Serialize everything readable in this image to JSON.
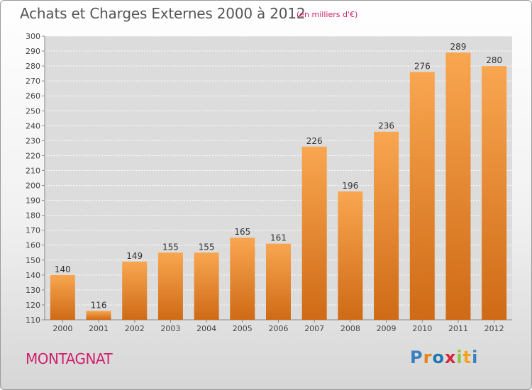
{
  "header": {
    "title": "Achats et Charges Externes 2000 à 2012",
    "subtitle": "(en milliers d'€)"
  },
  "footer": {
    "commune": "MONTAGNAT",
    "brand": [
      "P",
      "r",
      "o",
      "x",
      "i",
      "t",
      "i"
    ]
  },
  "colors": {
    "bar_light": "#f9a650",
    "bar_dark": "#cf6a16",
    "accent_text": "#d0206e",
    "brand": [
      "#3a7fc1",
      "#e8821e",
      "#1f78b4",
      "#d7263d",
      "#8cc63f",
      "#f4a11b",
      "#3a7fc1"
    ]
  },
  "chart_data": {
    "type": "bar",
    "categories": [
      "2000",
      "2001",
      "2002",
      "2003",
      "2004",
      "2005",
      "2006",
      "2007",
      "2008",
      "2009",
      "2010",
      "2011",
      "2012"
    ],
    "values": [
      140,
      116,
      149,
      155,
      155,
      165,
      161,
      226,
      196,
      236,
      276,
      289,
      280
    ],
    "value_labels": [
      "140",
      "116",
      "149",
      "155",
      "155",
      "165",
      "161",
      "226",
      "196",
      "236",
      "276",
      "289",
      "280"
    ],
    "ylim": [
      110,
      300
    ],
    "yticks": [
      "110",
      "120",
      "130",
      "140",
      "150",
      "160",
      "170",
      "180",
      "190",
      "200",
      "210",
      "220",
      "230",
      "240",
      "250",
      "260",
      "270",
      "280",
      "290",
      "300"
    ],
    "grid": true
  }
}
